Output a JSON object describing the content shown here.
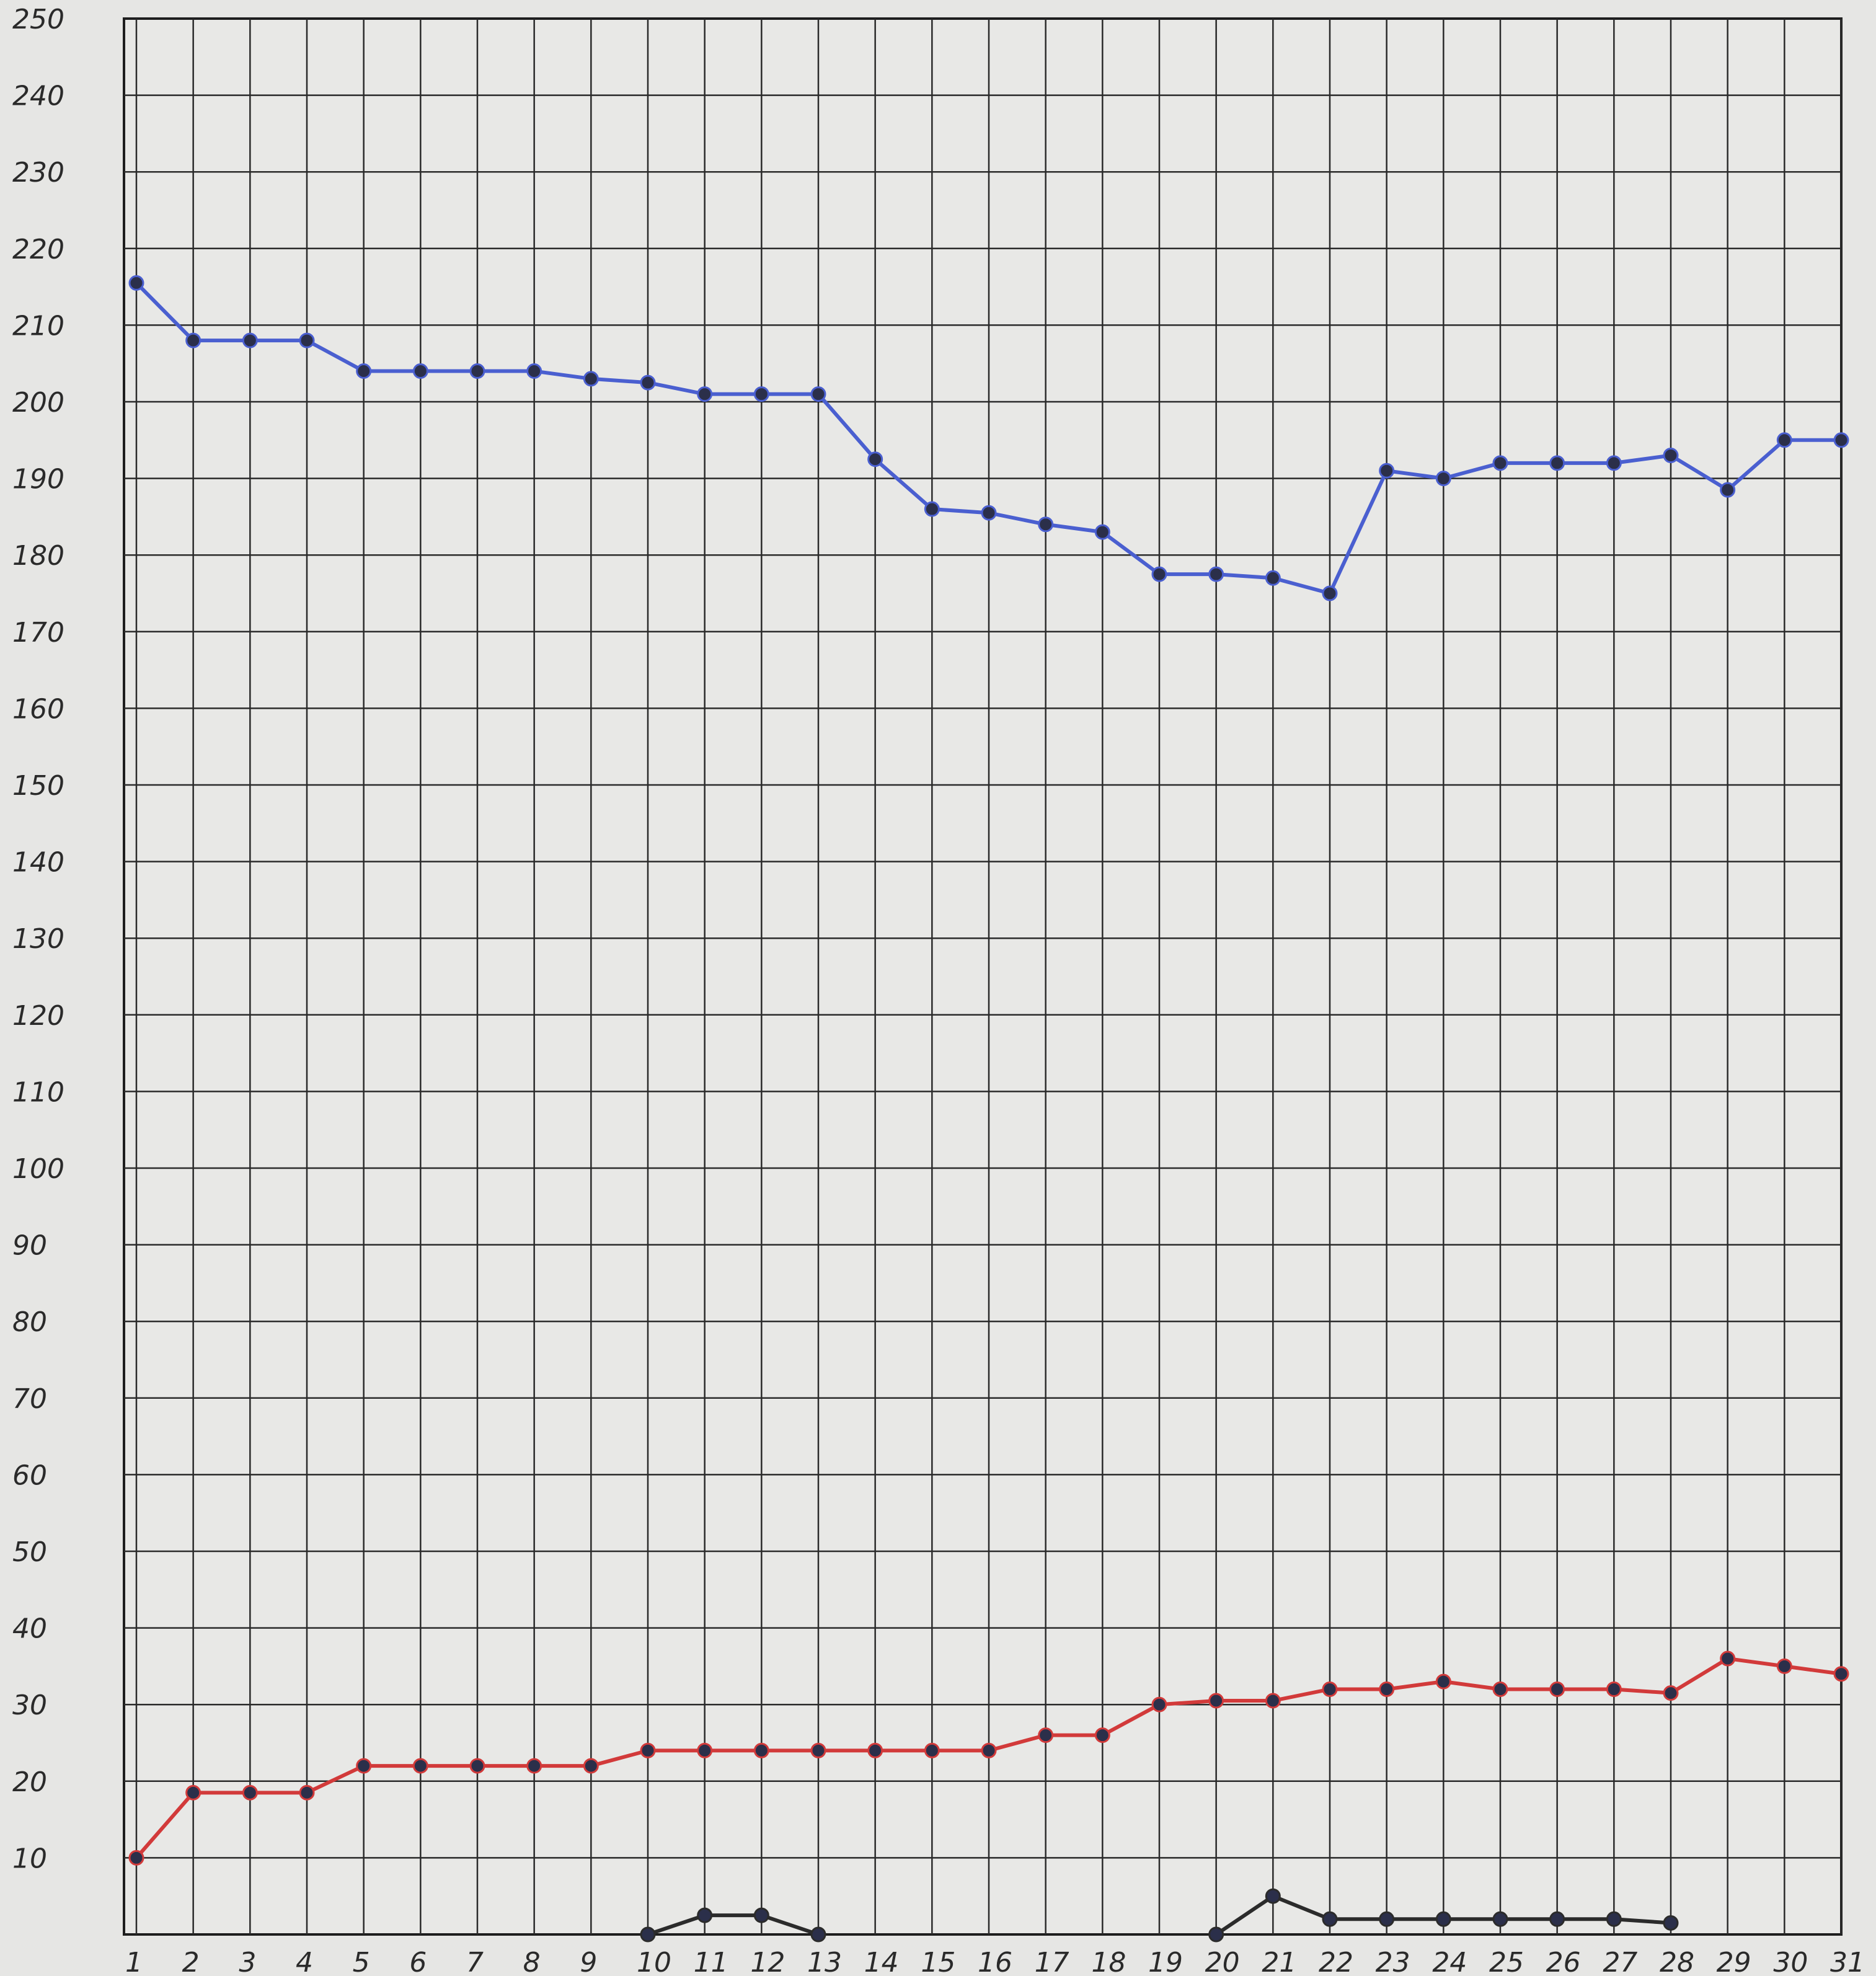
{
  "chart_data": {
    "type": "line",
    "title": "",
    "xlabel": "",
    "ylabel": "",
    "categories": [
      1,
      2,
      3,
      4,
      5,
      6,
      7,
      8,
      9,
      10,
      11,
      12,
      13,
      14,
      15,
      16,
      17,
      18,
      19,
      20,
      21,
      22,
      23,
      24,
      25,
      26,
      27,
      28,
      29,
      30,
      31
    ],
    "x_tick_labels": [
      "1",
      "2",
      "3",
      "4",
      "5",
      "6",
      "7",
      "8",
      "9",
      "10",
      "11",
      "12",
      "13",
      "14",
      "15",
      "16",
      "17",
      "18",
      "19",
      "20",
      "21",
      "22",
      "23",
      "24",
      "25",
      "26",
      "27",
      "28",
      "29",
      "30",
      "31"
    ],
    "y_tick_labels": [
      "10",
      "20",
      "30",
      "40",
      "50",
      "60",
      "70",
      "80",
      "90",
      "100",
      "110",
      "120",
      "130",
      "140",
      "150",
      "160",
      "170",
      "180",
      "190",
      "200",
      "210",
      "220",
      "230",
      "240",
      "250"
    ],
    "ylim": [
      0,
      250
    ],
    "grid": true,
    "series": [
      {
        "color": "#4a5fd0",
        "values": [
          215.5,
          208,
          208,
          208,
          204,
          204,
          204,
          204,
          203,
          202.5,
          201,
          201,
          201,
          192.5,
          186,
          185.5,
          184,
          183,
          177.5,
          177.5,
          177,
          175,
          191,
          190,
          192,
          192,
          192,
          193,
          188.5,
          195,
          195
        ]
      },
      {
        "color": "#d23a3a",
        "values": [
          10,
          18.5,
          18.5,
          18.5,
          22,
          22,
          22,
          22,
          22,
          24,
          24,
          24,
          24,
          24,
          24,
          24,
          26,
          26,
          30,
          30.5,
          30.5,
          32,
          32,
          33,
          32,
          32,
          32,
          31.5,
          36,
          35,
          34
        ]
      },
      {
        "color": "#2b2b2b",
        "segments": [
          {
            "x": [
              10,
              11,
              12,
              13
            ],
            "values": [
              0,
              2.5,
              2.5,
              0
            ]
          },
          {
            "x": [
              20,
              21,
              22,
              23,
              24,
              25,
              26,
              27,
              28
            ],
            "values": [
              0,
              5,
              2,
              2,
              2,
              2,
              2,
              2,
              1.5
            ]
          }
        ]
      }
    ]
  }
}
